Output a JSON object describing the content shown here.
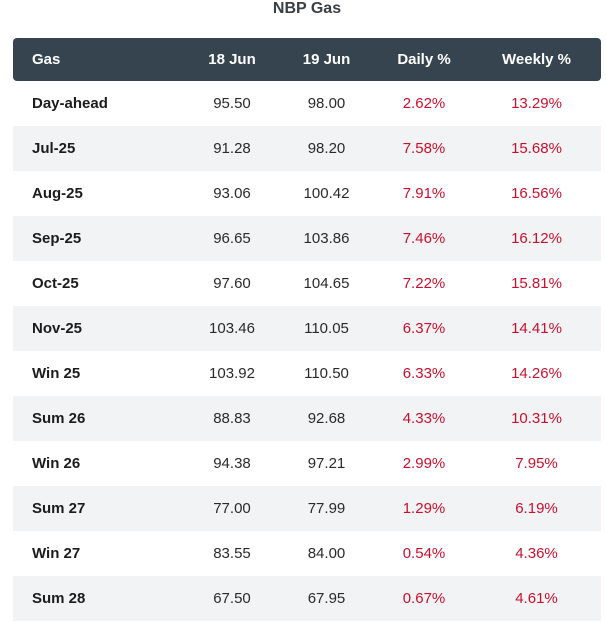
{
  "title": "NBP Gas",
  "headers": {
    "gas": "Gas",
    "d1": "18 Jun",
    "d2": "19 Jun",
    "daily": "Daily %",
    "weekly": "Weekly %"
  },
  "rows": [
    {
      "name": "Day-ahead",
      "d1": "95.50",
      "d2": "98.00",
      "daily": "2.62%",
      "weekly": "13.29%"
    },
    {
      "name": "Jul-25",
      "d1": "91.28",
      "d2": "98.20",
      "daily": "7.58%",
      "weekly": "15.68%"
    },
    {
      "name": "Aug-25",
      "d1": "93.06",
      "d2": "100.42",
      "daily": "7.91%",
      "weekly": "16.56%"
    },
    {
      "name": "Sep-25",
      "d1": "96.65",
      "d2": "103.86",
      "daily": "7.46%",
      "weekly": "16.12%"
    },
    {
      "name": "Oct-25",
      "d1": "97.60",
      "d2": "104.65",
      "daily": "7.22%",
      "weekly": "15.81%"
    },
    {
      "name": "Nov-25",
      "d1": "103.46",
      "d2": "110.05",
      "daily": "6.37%",
      "weekly": "14.41%"
    },
    {
      "name": "Win 25",
      "d1": "103.92",
      "d2": "110.50",
      "daily": "6.33%",
      "weekly": "14.26%"
    },
    {
      "name": "Sum 26",
      "d1": "88.83",
      "d2": "92.68",
      "daily": "4.33%",
      "weekly": "10.31%"
    },
    {
      "name": "Win 26",
      "d1": "94.38",
      "d2": "97.21",
      "daily": "2.99%",
      "weekly": "7.95%"
    },
    {
      "name": "Sum 27",
      "d1": "77.00",
      "d2": "77.99",
      "daily": "1.29%",
      "weekly": "6.19%"
    },
    {
      "name": "Win 27",
      "d1": "83.55",
      "d2": "84.00",
      "daily": "0.54%",
      "weekly": "4.36%"
    },
    {
      "name": "Sum 28",
      "d1": "67.50",
      "d2": "67.95",
      "daily": "0.67%",
      "weekly": "4.61%"
    }
  ],
  "colors": {
    "header_bg": "#36444f",
    "stripe_bg": "#f1f3f5",
    "positive_change": "#c8102e"
  }
}
